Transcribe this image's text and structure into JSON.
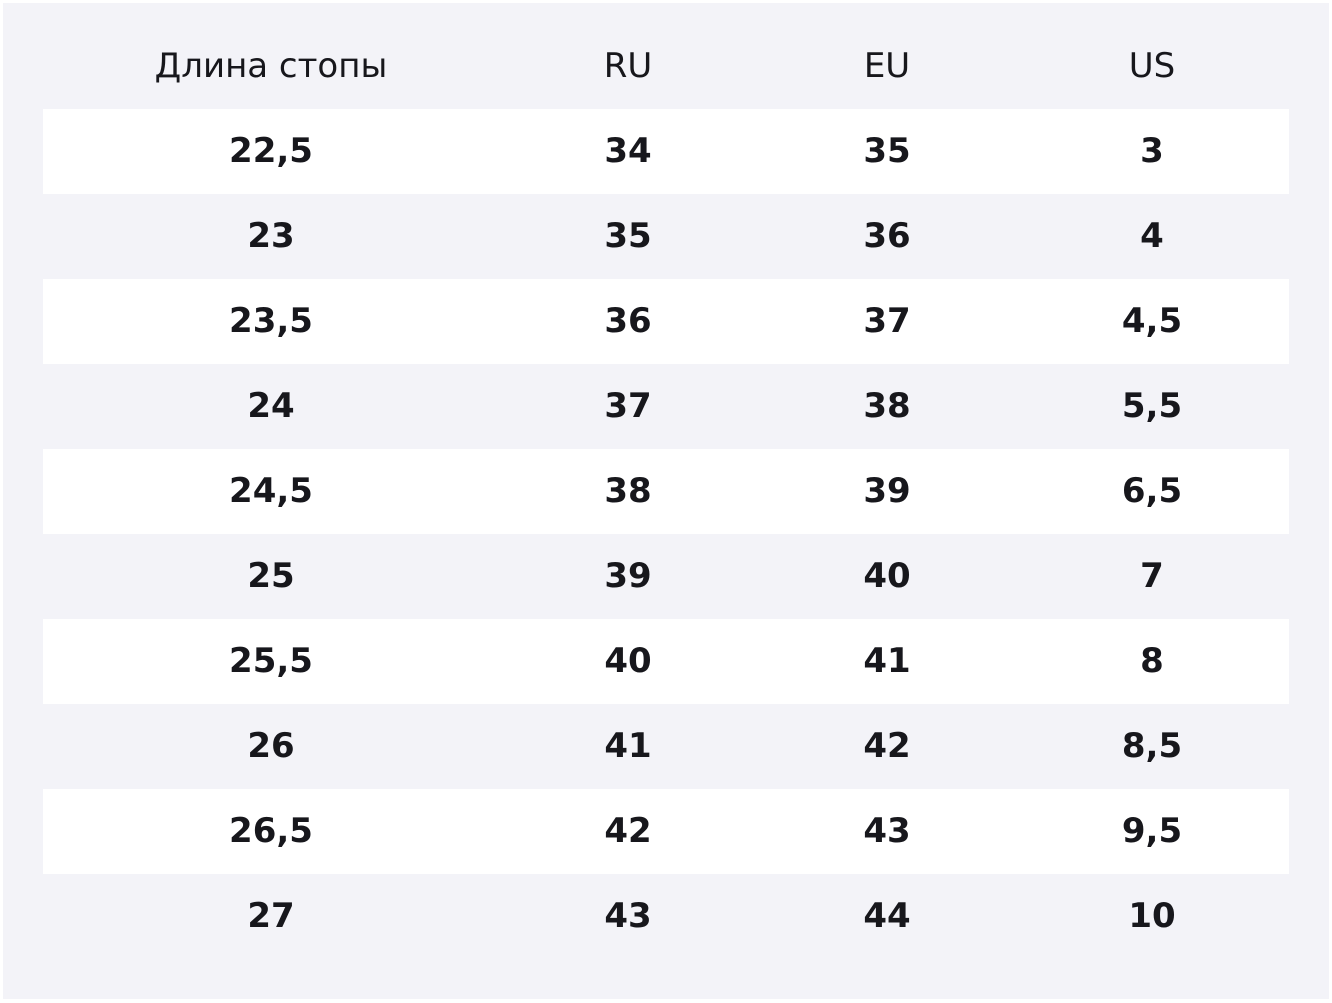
{
  "table": {
    "header": [
      "Длина стопы",
      "RU",
      "EU",
      "US"
    ],
    "rows": [
      [
        "22,5",
        "34",
        "35",
        "3"
      ],
      [
        "23",
        "35",
        "36",
        "4"
      ],
      [
        "23,5",
        "36",
        "37",
        "4,5"
      ],
      [
        "24",
        "37",
        "38",
        "5,5"
      ],
      [
        "24,5",
        "38",
        "39",
        "6,5"
      ],
      [
        "25",
        "39",
        "40",
        "7"
      ],
      [
        "25,5",
        "40",
        "41",
        "8"
      ],
      [
        "26",
        "41",
        "42",
        "8,5"
      ],
      [
        "26,5",
        "42",
        "43",
        "9,5"
      ],
      [
        "27",
        "43",
        "44",
        "10"
      ]
    ]
  }
}
